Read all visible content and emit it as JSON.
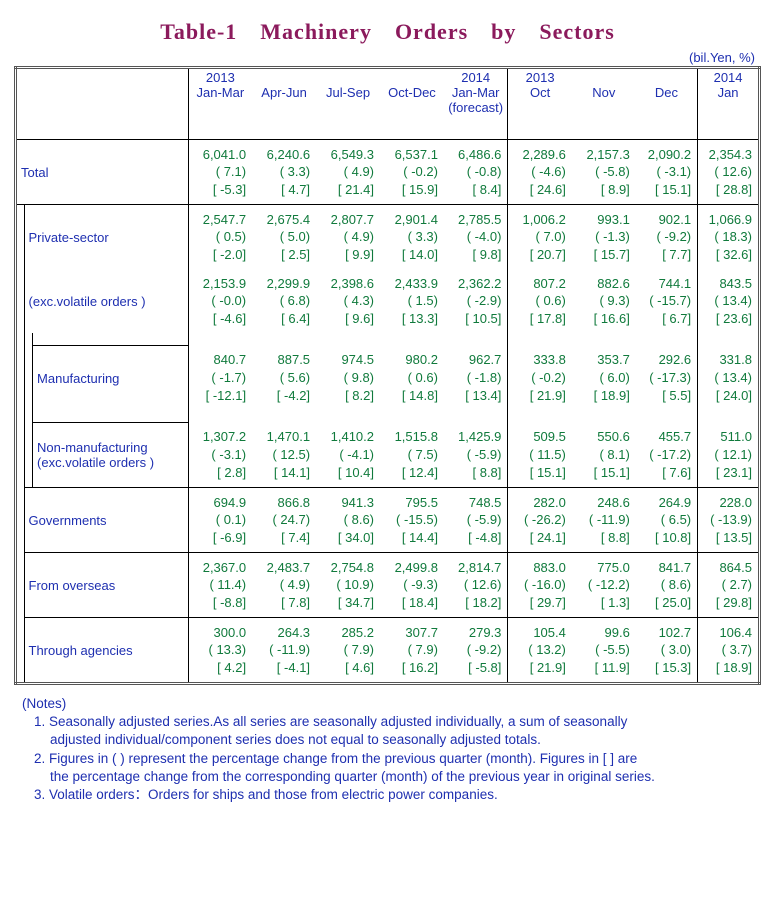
{
  "title": "Table-1　Machinery　Orders　by　Sectors",
  "unit": "(bil.Yen, %)",
  "text_color": "#1e2fb0",
  "title_color": "#8b1a5c",
  "data_color": "#107a3c",
  "header": {
    "cols": [
      [
        "2013",
        "Jan-Mar"
      ],
      [
        "",
        "Apr-Jun"
      ],
      [
        "",
        "Jul-Sep"
      ],
      [
        "",
        "Oct-Dec"
      ],
      [
        "2014",
        "Jan-Mar",
        "(forecast)"
      ],
      [
        "2013",
        "Oct"
      ],
      [
        "",
        "Nov"
      ],
      [
        "",
        "Dec"
      ],
      [
        "2014",
        "Jan"
      ]
    ]
  },
  "rows": [
    {
      "label": "Total",
      "indent": 0,
      "vals": [
        "6,041.0",
        "6,240.6",
        "6,549.3",
        "6,537.1",
        "6,486.6",
        "2,289.6",
        "2,157.3",
        "2,090.2",
        "2,354.3"
      ],
      "pct": [
        "( 7.1)",
        "( 3.3)",
        "( 4.9)",
        "( -0.2)",
        "( -0.8)",
        "( -4.6)",
        "( -5.8)",
        "( -3.1)",
        "( 12.6)"
      ],
      "yoy": [
        "[ -5.3]",
        "[ 4.7]",
        "[ 21.4]",
        "[ 15.9]",
        "[ 8.4]",
        "[ 24.6]",
        "[ 8.9]",
        "[ 15.1]",
        "[ 28.8]"
      ]
    },
    {
      "label": "Private-sector",
      "indent": 1,
      "vals": [
        "2,547.7",
        "2,675.4",
        "2,807.7",
        "2,901.4",
        "2,785.5",
        "1,006.2",
        "993.1",
        "902.1",
        "1,066.9"
      ],
      "pct": [
        "( 0.5)",
        "( 5.0)",
        "( 4.9)",
        "( 3.3)",
        "( -4.0)",
        "( 7.0)",
        "( -1.3)",
        "( -9.2)",
        "( 18.3)"
      ],
      "yoy": [
        "[ -2.0]",
        "[ 2.5]",
        "[ 9.9]",
        "[ 14.0]",
        "[ 9.8]",
        "[ 20.7]",
        "[ 15.7]",
        "[ 7.7]",
        "[ 32.6]"
      ]
    },
    {
      "label": "(exc.volatile orders )",
      "indent": 1,
      "noTopLine": true,
      "vals": [
        "2,153.9",
        "2,299.9",
        "2,398.6",
        "2,433.9",
        "2,362.2",
        "807.2",
        "882.6",
        "744.1",
        "843.5"
      ],
      "pct": [
        "( -0.0)",
        "( 6.8)",
        "( 4.3)",
        "( 1.5)",
        "( -2.9)",
        "( 0.6)",
        "( 9.3)",
        "( -15.7)",
        "( 13.4)"
      ],
      "yoy": [
        "[ -4.6]",
        "[ 6.4]",
        "[ 9.6]",
        "[ 13.3]",
        "[ 10.5]",
        "[ 17.8]",
        "[ 16.6]",
        "[ 6.7]",
        "[ 23.6]"
      ]
    },
    {
      "label": "Manufacturing",
      "indent": 2,
      "vals": [
        "840.7",
        "887.5",
        "974.5",
        "980.2",
        "962.7",
        "333.8",
        "353.7",
        "292.6",
        "331.8"
      ],
      "pct": [
        "( -1.7)",
        "( 5.6)",
        "( 9.8)",
        "( 0.6)",
        "( -1.8)",
        "( -0.2)",
        "( 6.0)",
        "( -17.3)",
        "( 13.4)"
      ],
      "yoy": [
        "[ -12.1]",
        "[ -4.2]",
        "[ 8.2]",
        "[ 14.8]",
        "[ 13.4]",
        "[ 21.9]",
        "[ 18.9]",
        "[ 5.5]",
        "[ 24.0]"
      ]
    },
    {
      "label": "Non-manufacturing\n(exc.volatile orders )",
      "indent": 2,
      "vals": [
        "1,307.2",
        "1,470.1",
        "1,410.2",
        "1,515.8",
        "1,425.9",
        "509.5",
        "550.6",
        "455.7",
        "511.0"
      ],
      "pct": [
        "( -3.1)",
        "( 12.5)",
        "( -4.1)",
        "( 7.5)",
        "( -5.9)",
        "( 11.5)",
        "( 8.1)",
        "( -17.2)",
        "( 12.1)"
      ],
      "yoy": [
        "[ 2.8]",
        "[ 14.1]",
        "[ 10.4]",
        "[ 12.4]",
        "[ 8.8]",
        "[ 15.1]",
        "[ 15.1]",
        "[ 7.6]",
        "[ 23.1]"
      ]
    },
    {
      "label": "Governments",
      "indent": 1,
      "vals": [
        "694.9",
        "866.8",
        "941.3",
        "795.5",
        "748.5",
        "282.0",
        "248.6",
        "264.9",
        "228.0"
      ],
      "pct": [
        "( 0.1)",
        "( 24.7)",
        "( 8.6)",
        "( -15.5)",
        "( -5.9)",
        "( -26.2)",
        "( -11.9)",
        "( 6.5)",
        "( -13.9)"
      ],
      "yoy": [
        "[ -6.9]",
        "[ 7.4]",
        "[ 34.0]",
        "[ 14.4]",
        "[ -4.8]",
        "[ 24.1]",
        "[ 8.8]",
        "[ 10.8]",
        "[ 13.5]"
      ]
    },
    {
      "label": "From overseas",
      "indent": 1,
      "vals": [
        "2,367.0",
        "2,483.7",
        "2,754.8",
        "2,499.8",
        "2,814.7",
        "883.0",
        "775.0",
        "841.7",
        "864.5"
      ],
      "pct": [
        "( 11.4)",
        "( 4.9)",
        "( 10.9)",
        "( -9.3)",
        "( 12.6)",
        "( -16.0)",
        "( -12.2)",
        "( 8.6)",
        "( 2.7)"
      ],
      "yoy": [
        "[ -8.8]",
        "[ 7.8]",
        "[ 34.7]",
        "[ 18.4]",
        "[ 18.2]",
        "[ 29.7]",
        "[ 1.3]",
        "[ 25.0]",
        "[ 29.8]"
      ]
    },
    {
      "label": "Through agencies",
      "indent": 1,
      "vals": [
        "300.0",
        "264.3",
        "285.2",
        "307.7",
        "279.3",
        "105.4",
        "99.6",
        "102.7",
        "106.4"
      ],
      "pct": [
        "( 13.3)",
        "( -11.9)",
        "( 7.9)",
        "( 7.9)",
        "( -9.2)",
        "( 13.2)",
        "( -5.5)",
        "( 3.0)",
        "( 3.7)"
      ],
      "yoy": [
        "[ 4.2]",
        "[ -4.1]",
        "[ 4.6]",
        "[ 16.2]",
        "[ -5.8]",
        "[ 21.9]",
        "[ 11.9]",
        "[ 15.3]",
        "[ 18.9]"
      ]
    }
  ],
  "notes": {
    "heading": "(Notes)",
    "items": [
      [
        "1. Seasonally adjusted series.As all series are seasonally adjusted individually, a sum of seasonally",
        "adjusted individual/component series does not equal to seasonally adjusted totals."
      ],
      [
        "2. Figures in ( ) represent the percentage change from the previous quarter (month). Figures in [ ] are",
        "the percentage change from the corresponding quarter (month) of the previous year in original series."
      ],
      [
        "3. Volatile orders：Orders for ships and those from electric power companies."
      ]
    ]
  },
  "colwidths": [
    "8px",
    "8px",
    "146px",
    "60px",
    "60px",
    "60px",
    "60px",
    "60px",
    "60px",
    "60px",
    "58px",
    "58px"
  ]
}
